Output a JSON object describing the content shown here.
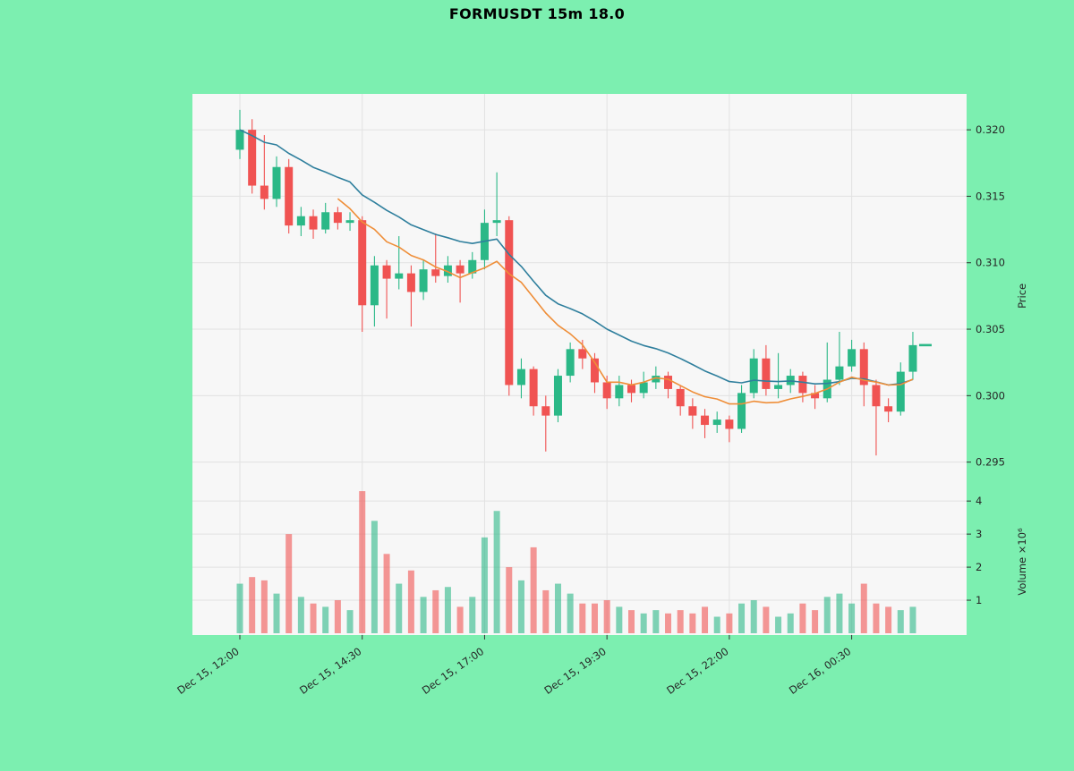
{
  "chart_data": {
    "type": "candlestick",
    "title": "FORMUSDT 15m 18.0",
    "symbol": "FORMUSDT",
    "interval": "15m",
    "ylabel_price": "Price",
    "ylabel_volume": "Volume ×10⁶",
    "price_ticks": [
      0.32,
      0.315,
      0.31,
      0.305,
      0.3,
      0.295
    ],
    "price_range": [
      0.2939,
      0.3227
    ],
    "volume_ticks": [
      1,
      2,
      3,
      4
    ],
    "volume_range": [
      0,
      4.6
    ],
    "volume_unit": "millions",
    "x_tick_indices": [
      0,
      10,
      20,
      30,
      40,
      50
    ],
    "x_tick_labels": [
      "Dec 15, 12:00",
      "Dec 15, 14:30",
      "Dec 15, 17:00",
      "Dec 15, 19:30",
      "Dec 15, 22:00",
      "Dec 16, 00:30"
    ],
    "grid": true,
    "colors": {
      "background": "#7cefb0",
      "plot_bg": "#f7f7f7",
      "grid": "#e2e2e2",
      "up": "#2bb887",
      "down": "#f05352",
      "ma_slow": "#2f7f9d",
      "ma_fast": "#ef8e38",
      "tick_text": "#262626"
    },
    "moving_averages": [
      {
        "name": "ema-18",
        "type": "ema",
        "period": 18,
        "color": "#2f7f9d"
      },
      {
        "name": "sma-9",
        "type": "sma",
        "period": 9,
        "color": "#ef8e38"
      }
    ],
    "last_price": 0.3038,
    "candles_format": [
      "open",
      "high",
      "low",
      "close",
      "volume_millions"
    ],
    "candles": [
      [
        0.3185,
        0.3215,
        0.3178,
        0.32,
        1.5
      ],
      [
        0.32,
        0.3208,
        0.3152,
        0.3158,
        1.7
      ],
      [
        0.3158,
        0.3196,
        0.314,
        0.3148,
        1.6
      ],
      [
        0.3148,
        0.318,
        0.3142,
        0.3172,
        1.2
      ],
      [
        0.3172,
        0.3178,
        0.3122,
        0.3128,
        3.0
      ],
      [
        0.3128,
        0.3142,
        0.312,
        0.3135,
        1.1
      ],
      [
        0.3135,
        0.314,
        0.3118,
        0.3125,
        0.9
      ],
      [
        0.3125,
        0.3145,
        0.3122,
        0.3138,
        0.8
      ],
      [
        0.3138,
        0.3142,
        0.3125,
        0.313,
        1.0
      ],
      [
        0.313,
        0.3138,
        0.3124,
        0.3132,
        0.7
      ],
      [
        0.3132,
        0.3135,
        0.3048,
        0.3068,
        4.3
      ],
      [
        0.3068,
        0.3105,
        0.3052,
        0.3098,
        3.4
      ],
      [
        0.3098,
        0.3102,
        0.3058,
        0.3088,
        2.4
      ],
      [
        0.3088,
        0.312,
        0.308,
        0.3092,
        1.5
      ],
      [
        0.3092,
        0.3098,
        0.3052,
        0.3078,
        1.9
      ],
      [
        0.3078,
        0.3102,
        0.3072,
        0.3095,
        1.1
      ],
      [
        0.3095,
        0.3122,
        0.3085,
        0.309,
        1.3
      ],
      [
        0.309,
        0.3105,
        0.3085,
        0.3098,
        1.4
      ],
      [
        0.3098,
        0.3102,
        0.307,
        0.3092,
        0.8
      ],
      [
        0.3092,
        0.3108,
        0.3088,
        0.3102,
        1.1
      ],
      [
        0.3102,
        0.314,
        0.3095,
        0.313,
        2.9
      ],
      [
        0.313,
        0.3168,
        0.312,
        0.3132,
        3.7
      ],
      [
        0.3132,
        0.3135,
        0.3,
        0.3008,
        2.0
      ],
      [
        0.3008,
        0.3028,
        0.2998,
        0.302,
        1.6
      ],
      [
        0.302,
        0.3022,
        0.2985,
        0.2992,
        2.6
      ],
      [
        0.2992,
        0.3,
        0.2958,
        0.2985,
        1.3
      ],
      [
        0.2985,
        0.302,
        0.298,
        0.3015,
        1.5
      ],
      [
        0.3015,
        0.304,
        0.301,
        0.3035,
        1.2
      ],
      [
        0.3035,
        0.3042,
        0.302,
        0.3028,
        0.9
      ],
      [
        0.3028,
        0.3032,
        0.3002,
        0.301,
        0.9
      ],
      [
        0.301,
        0.3015,
        0.299,
        0.2998,
        1.0
      ],
      [
        0.2998,
        0.3015,
        0.2992,
        0.3008,
        0.8
      ],
      [
        0.3008,
        0.3012,
        0.2995,
        0.3002,
        0.7
      ],
      [
        0.3002,
        0.3018,
        0.2998,
        0.301,
        0.6
      ],
      [
        0.301,
        0.3022,
        0.3005,
        0.3015,
        0.7
      ],
      [
        0.3015,
        0.3018,
        0.2998,
        0.3005,
        0.6
      ],
      [
        0.3005,
        0.3008,
        0.2985,
        0.2992,
        0.7
      ],
      [
        0.2992,
        0.2998,
        0.2975,
        0.2985,
        0.6
      ],
      [
        0.2985,
        0.299,
        0.2968,
        0.2978,
        0.8
      ],
      [
        0.2978,
        0.2988,
        0.2972,
        0.2982,
        0.5
      ],
      [
        0.2982,
        0.2985,
        0.2965,
        0.2975,
        0.6
      ],
      [
        0.2975,
        0.3008,
        0.2972,
        0.3002,
        0.9
      ],
      [
        0.3002,
        0.3035,
        0.2998,
        0.3028,
        1.0
      ],
      [
        0.3028,
        0.3038,
        0.3,
        0.3005,
        0.8
      ],
      [
        0.3005,
        0.3032,
        0.2998,
        0.3008,
        0.5
      ],
      [
        0.3008,
        0.302,
        0.3002,
        0.3015,
        0.6
      ],
      [
        0.3015,
        0.3018,
        0.2995,
        0.3002,
        0.9
      ],
      [
        0.3002,
        0.3008,
        0.299,
        0.2998,
        0.7
      ],
      [
        0.2998,
        0.304,
        0.2995,
        0.3012,
        1.1
      ],
      [
        0.3012,
        0.3048,
        0.3008,
        0.3022,
        1.2
      ],
      [
        0.3022,
        0.3042,
        0.3018,
        0.3035,
        0.9
      ],
      [
        0.3035,
        0.304,
        0.2992,
        0.3008,
        1.5
      ],
      [
        0.3008,
        0.3012,
        0.2955,
        0.2992,
        0.9
      ],
      [
        0.2992,
        0.2998,
        0.298,
        0.2988,
        0.8
      ],
      [
        0.2988,
        0.3025,
        0.2985,
        0.3018,
        0.7
      ],
      [
        0.3018,
        0.3048,
        0.3012,
        0.3038,
        0.8
      ]
    ]
  }
}
